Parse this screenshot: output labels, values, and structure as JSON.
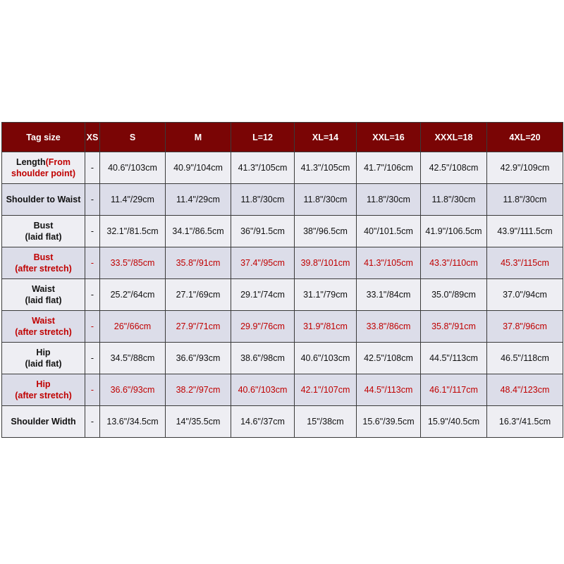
{
  "table": {
    "header": [
      "Tag size",
      "XS",
      "S",
      "M",
      "L=12",
      "XL=14",
      "XXL=16",
      "XXXL=18",
      "4XL=20"
    ],
    "rows": [
      {
        "label": "Length",
        "note": "(From shoulder point)",
        "cells": [
          "-",
          "40.6\"/103cm",
          "40.9\"/104cm",
          "41.3\"/105cm",
          "41.3\"/105cm",
          "41.7\"/106cm",
          "42.5\"/108cm",
          "42.9\"/109cm"
        ]
      },
      {
        "label": "Shoulder to Waist",
        "cells": [
          "-",
          "11.4\"/29cm",
          "11.4\"/29cm",
          "11.8\"/30cm",
          "11.8\"/30cm",
          "11.8\"/30cm",
          "11.8\"/30cm",
          "11.8\"/30cm"
        ]
      },
      {
        "label": "Bust",
        "sublabel": "(laid flat)",
        "cells": [
          "-",
          "32.1\"/81.5cm",
          "34.1\"/86.5cm",
          "36\"/91.5cm",
          "38\"/96.5cm",
          "40\"/101.5cm",
          "41.9\"/106.5cm",
          "43.9\"/111.5cm"
        ]
      },
      {
        "label": "Bust",
        "sublabel": "(after stretch)",
        "color": "#c00000",
        "cells": [
          "-",
          "33.5\"/85cm",
          "35.8\"/91cm",
          "37.4\"/95cm",
          "39.8\"/101cm",
          "41.3\"/105cm",
          "43.3\"/110cm",
          "45.3\"/115cm"
        ]
      },
      {
        "label": "Waist",
        "sublabel": "(laid flat)",
        "cells": [
          "-",
          "25.2\"/64cm",
          "27.1\"/69cm",
          "29.1\"/74cm",
          "31.1\"/79cm",
          "33.1\"/84cm",
          "35.0\"/89cm",
          "37.0\"/94cm"
        ]
      },
      {
        "label": "Waist",
        "sublabel": "(after stretch)",
        "color": "#c00000",
        "cells": [
          "-",
          "26\"/66cm",
          "27.9\"/71cm",
          "29.9\"/76cm",
          "31.9\"/81cm",
          "33.8\"/86cm",
          "35.8\"/91cm",
          "37.8\"/96cm"
        ]
      },
      {
        "label": "Hip",
        "sublabel": "(laid flat)",
        "cells": [
          "-",
          "34.5\"/88cm",
          "36.6\"/93cm",
          "38.6\"/98cm",
          "40.6\"/103cm",
          "42.5\"/108cm",
          "44.5\"/113cm",
          "46.5\"/118cm"
        ]
      },
      {
        "label": "Hip",
        "sublabel": "(after stretch)",
        "color": "#c00000",
        "cells": [
          "-",
          "36.6\"/93cm",
          "38.2\"/97cm",
          "40.6\"/103cm",
          "42.1\"/107cm",
          "44.5\"/113cm",
          "46.1\"/117cm",
          "48.4\"/123cm"
        ]
      },
      {
        "label": "Shoulder Width",
        "cells": [
          "-",
          "13.6\"/34.5cm",
          "14\"/35.5cm",
          "14.6\"/37cm",
          "15\"/38cm",
          "15.6\"/39.5cm",
          "15.9\"/40.5cm",
          "16.3\"/41.5cm"
        ]
      }
    ]
  }
}
